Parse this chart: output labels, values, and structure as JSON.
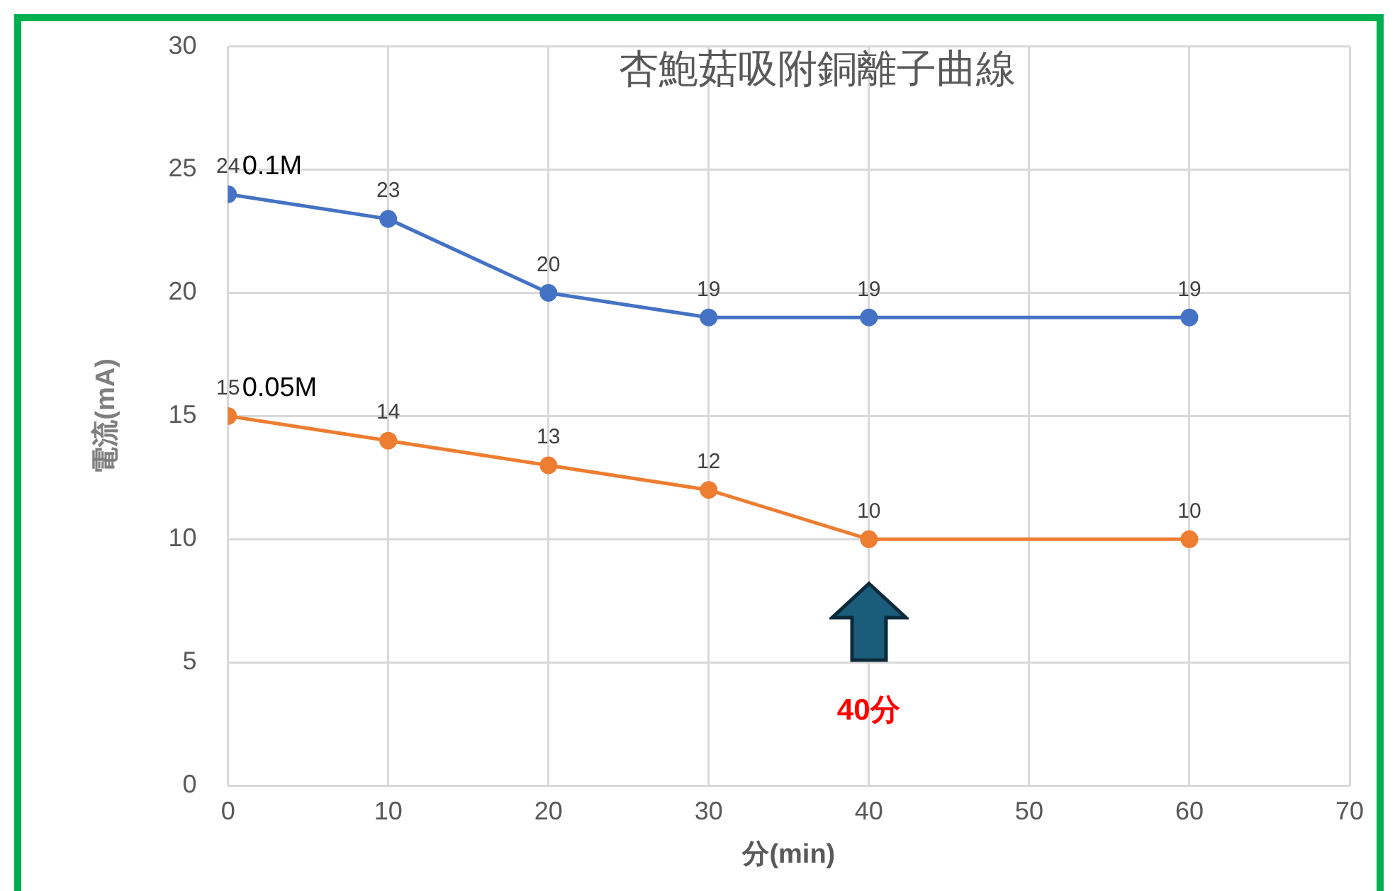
{
  "chart_data": {
    "type": "line",
    "title": "杏鮑菇吸附銅離子曲線",
    "xlabel": "分(min)",
    "ylabel": "電流(mA)",
    "x": [
      0,
      10,
      20,
      30,
      40,
      60
    ],
    "series": [
      {
        "name": "0.1M",
        "color": "#4472c4",
        "values": [
          24,
          23,
          20,
          19,
          19,
          19
        ]
      },
      {
        "name": "0.05M",
        "color": "#ed7d31",
        "values": [
          15,
          14,
          13,
          12,
          10,
          10
        ]
      }
    ],
    "xlim": [
      0,
      70
    ],
    "xticks": [
      0,
      10,
      20,
      30,
      40,
      50,
      60,
      70
    ],
    "ylim": [
      0,
      30
    ],
    "yticks": [
      0,
      5,
      10,
      15,
      20,
      25,
      30
    ],
    "grid": true,
    "legend": false,
    "marker": "circle",
    "line_style": "solid",
    "data_labels": true,
    "annotations": [
      "40分"
    ]
  }
}
